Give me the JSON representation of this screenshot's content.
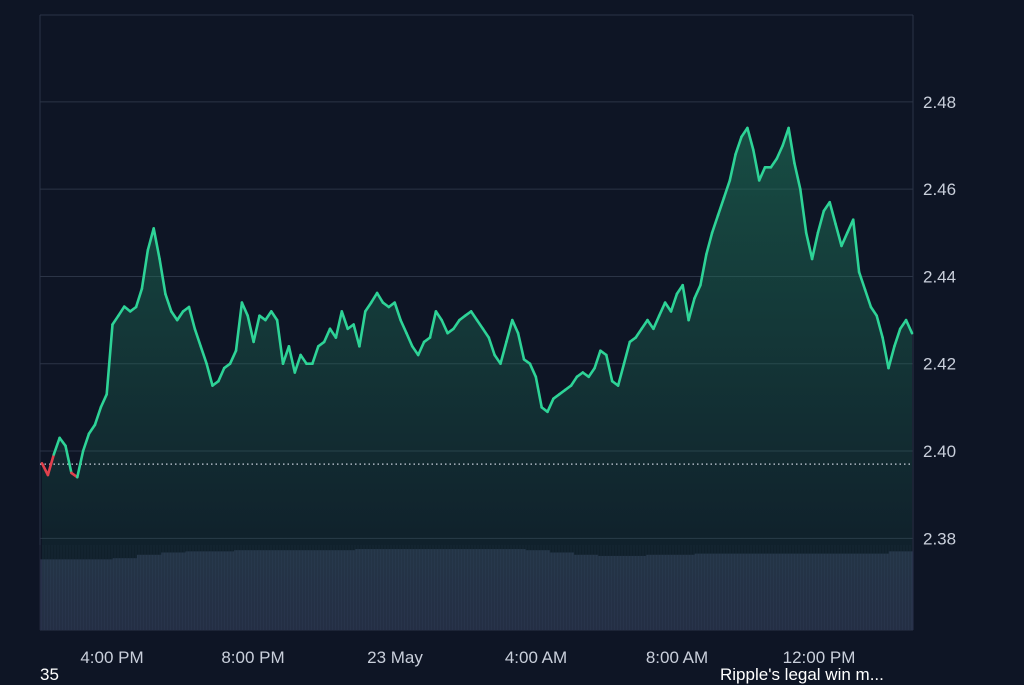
{
  "chart_data": {
    "type": "area",
    "title": "",
    "xlabel": "",
    "ylabel": "",
    "x_ticks": [
      "4:00 PM",
      "8:00 PM",
      "23 May",
      "4:00 AM",
      "8:00 AM",
      "12:00 PM"
    ],
    "y_ticks": [
      "2.48",
      "2.46",
      "2.44",
      "2.42",
      "2.40",
      "2.38"
    ],
    "ylim": [
      2.359,
      2.4999
    ],
    "baseline": 2.397,
    "grid": true,
    "colors": {
      "up": "#2ed397",
      "down": "#e2414d",
      "volume": "#28314a",
      "grid": "#2b3446",
      "background": "#0e1525"
    },
    "series": [
      {
        "values": [
          2.3972,
          2.3945,
          2.3992,
          2.403,
          2.4012,
          2.395,
          2.394,
          2.4,
          2.404,
          2.406,
          2.41,
          2.413,
          2.429,
          2.431,
          2.4331,
          2.432,
          2.433,
          2.4372,
          2.446,
          2.451,
          2.444,
          2.436,
          2.432,
          2.43,
          2.432,
          2.433,
          2.428,
          2.424,
          2.42,
          2.415,
          2.416,
          2.419,
          2.42,
          2.423,
          2.434,
          2.431,
          2.425,
          2.431,
          2.43,
          2.432,
          2.43,
          2.42,
          2.424,
          2.418,
          2.422,
          2.42,
          2.42,
          2.424,
          2.425,
          2.428,
          2.426,
          2.432,
          2.428,
          2.429,
          2.424,
          2.432,
          2.434,
          2.4362,
          2.434,
          2.433,
          2.434,
          2.43,
          2.427,
          2.424,
          2.422,
          2.425,
          2.426,
          2.432,
          2.43,
          2.427,
          2.428,
          2.43,
          2.431,
          2.432,
          2.43,
          2.428,
          2.426,
          2.422,
          2.42,
          2.425,
          2.43,
          2.427,
          2.421,
          2.42,
          2.417,
          2.41,
          2.409,
          2.412,
          2.413,
          2.414,
          2.415,
          2.417,
          2.418,
          2.417,
          2.419,
          2.423,
          2.422,
          2.416,
          2.415,
          2.42,
          2.425,
          2.426,
          2.428,
          2.43,
          2.428,
          2.431,
          2.434,
          2.432,
          2.436,
          2.438,
          2.43,
          2.435,
          2.438,
          2.445,
          2.45,
          2.454,
          2.458,
          2.462,
          2.468,
          2.472,
          2.474,
          2.469,
          2.462,
          2.465,
          2.465,
          2.467,
          2.47,
          2.474,
          2.466,
          2.46,
          2.45,
          2.444,
          2.45,
          2.455,
          2.457,
          2.452,
          2.447,
          2.45,
          2.453,
          2.441,
          2.437,
          2.433,
          2.431,
          2.426,
          2.419,
          2.424,
          2.428,
          2.43,
          2.427
        ]
      }
    ],
    "volume": [
      0.62,
      0.62,
      0.62,
      0.63,
      0.66,
      0.68,
      0.69,
      0.69,
      0.7,
      0.7,
      0.7,
      0.7,
      0.7,
      0.71,
      0.71,
      0.71,
      0.71,
      0.71,
      0.71,
      0.71,
      0.7,
      0.68,
      0.66,
      0.65,
      0.65,
      0.66,
      0.66,
      0.67,
      0.67,
      0.67,
      0.67,
      0.67,
      0.67,
      0.67,
      0.67,
      0.69
    ]
  },
  "footer": {
    "left_text": "35",
    "right_text": "Ripple's legal win m..."
  }
}
